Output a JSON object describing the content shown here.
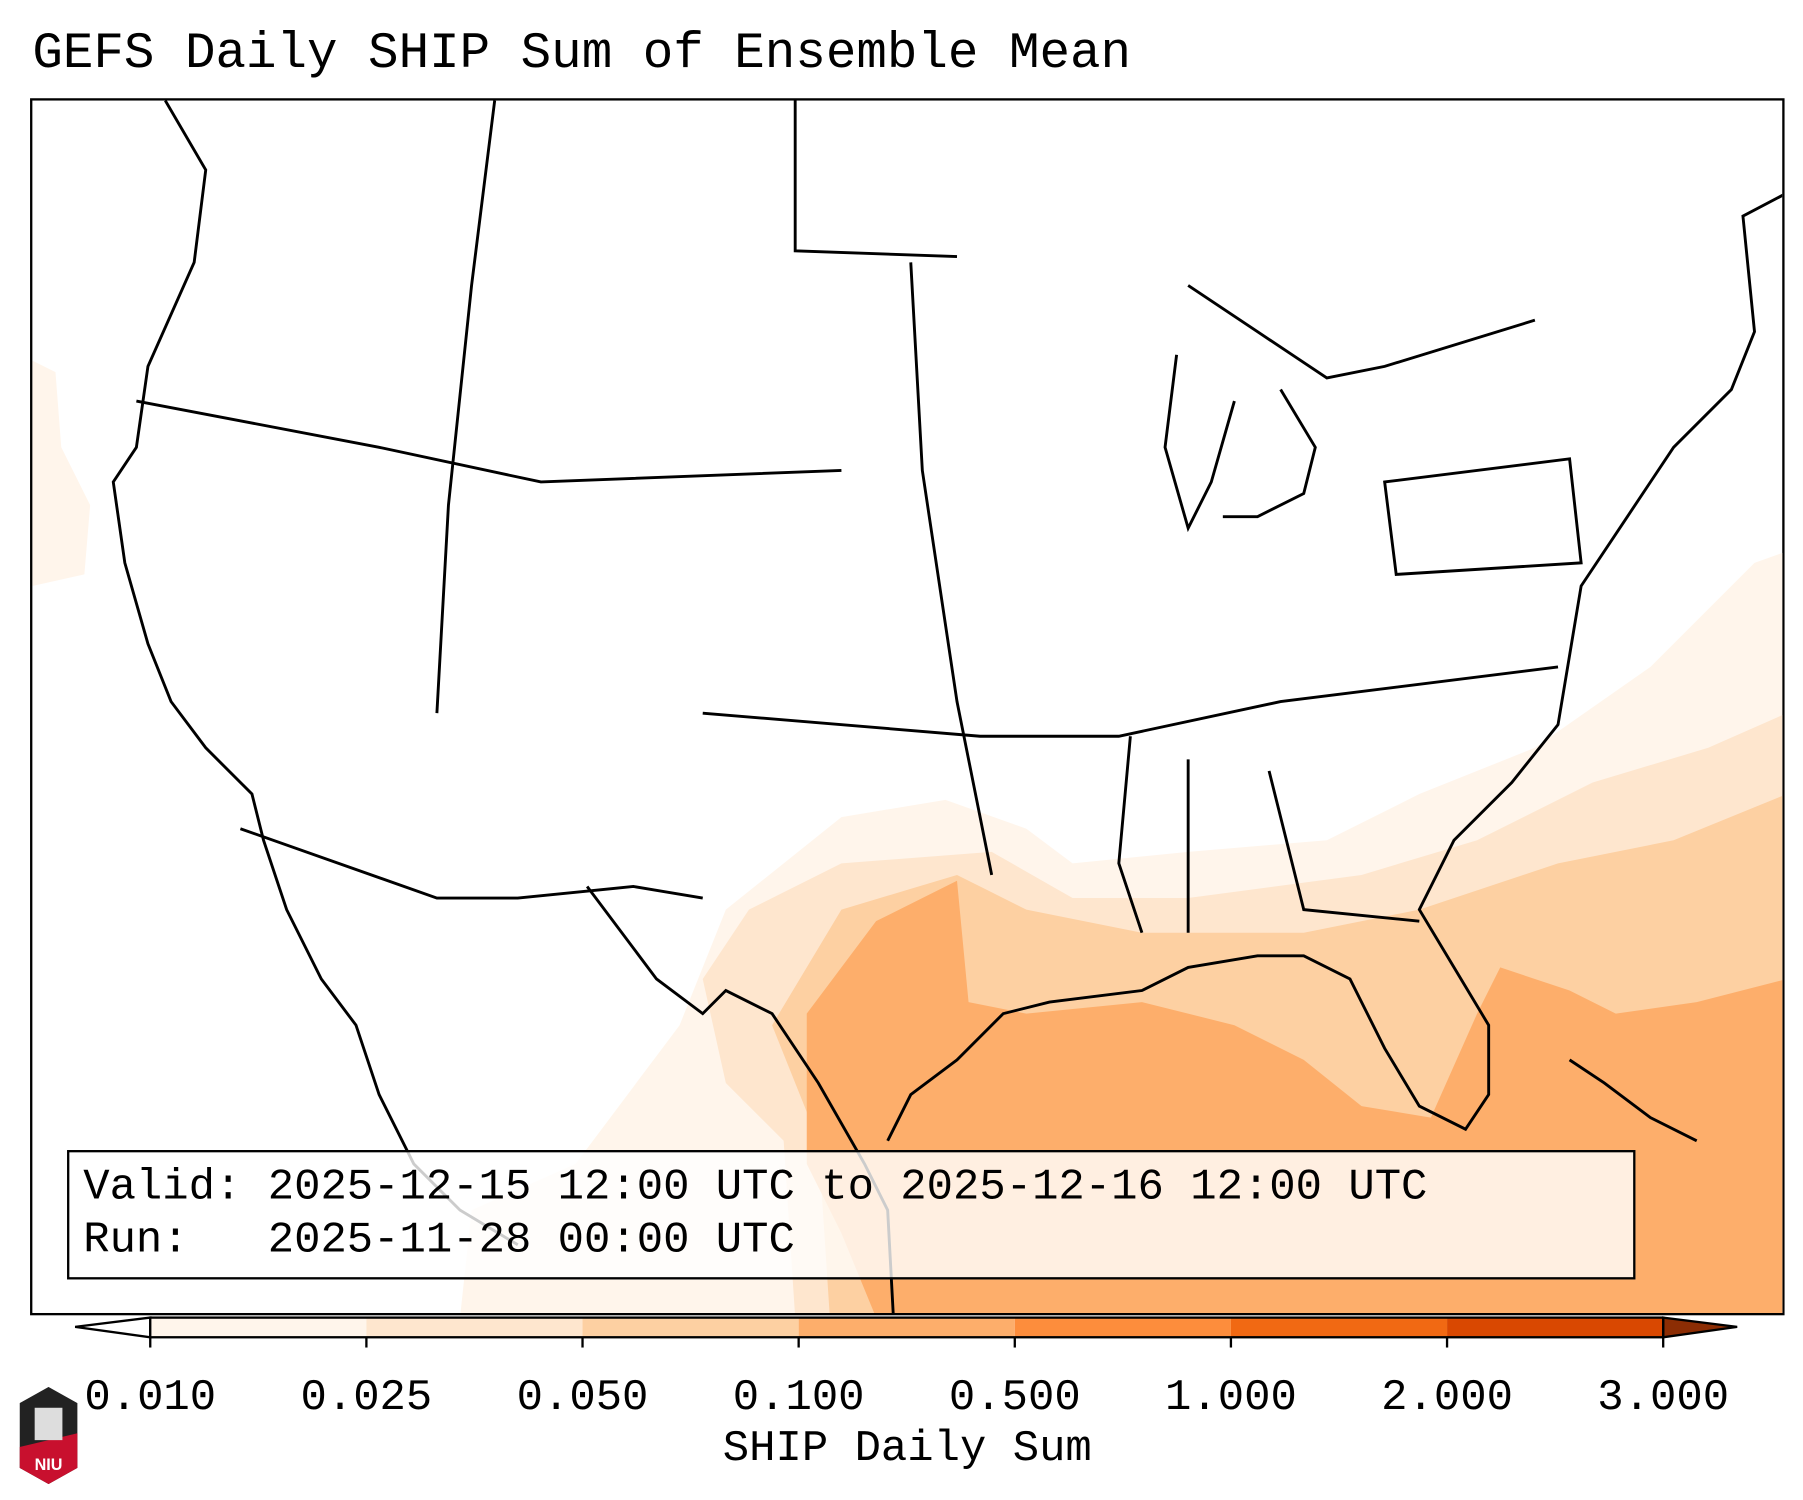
{
  "title": "GEFS Daily SHIP Sum of Ensemble Mean",
  "info": {
    "valid_label": "Valid:",
    "valid_value": "2025-12-15 12:00 UTC to 2025-12-16 12:00 UTC",
    "run_label": "Run:",
    "run_value": "2025-11-28 00:00 UTC"
  },
  "colorbar": {
    "label": "SHIP Daily Sum",
    "ticks": [
      "0.010",
      "0.025",
      "0.050",
      "0.100",
      "0.500",
      "1.000",
      "2.000",
      "3.000"
    ],
    "colors": [
      "#fff5eb",
      "#fee6ce",
      "#fdd0a2",
      "#fdae6b",
      "#fd8d3c",
      "#f16913",
      "#d94801",
      "#8c2d04"
    ]
  },
  "logo": {
    "text": "NIU"
  }
}
